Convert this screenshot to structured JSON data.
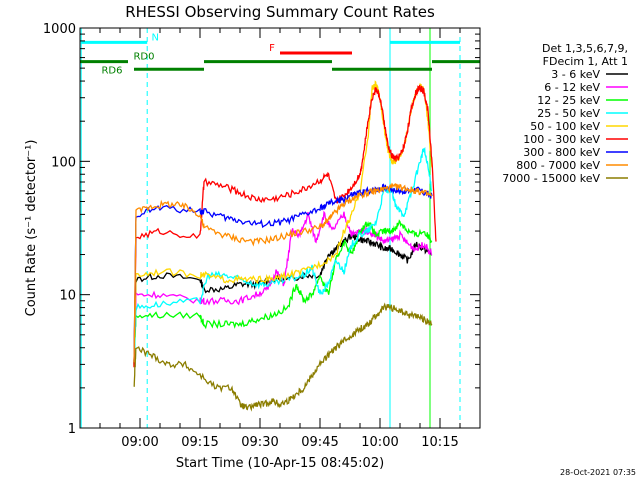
{
  "chart_data": {
    "type": "line",
    "title": "RHESSI Observing Summary Count Rates",
    "xlabel": "Start Time (10-Apr-15 08:45:02)",
    "ylabel": "Count Rate (s⁻¹ detector⁻¹)",
    "yscale": "log",
    "xlim": [
      0,
      100
    ],
    "ylim": [
      1,
      1000
    ],
    "grid": false,
    "x_ticks": [
      {
        "label": "09:00",
        "value": 15
      },
      {
        "label": "09:15",
        "value": 30
      },
      {
        "label": "09:30",
        "value": 45
      },
      {
        "label": "09:45",
        "value": 60
      },
      {
        "label": "10:00",
        "value": 75
      },
      {
        "label": "10:15",
        "value": 90
      }
    ],
    "y_ticks": [
      {
        "label": "1",
        "value": 1
      },
      {
        "label": "10",
        "value": 10
      },
      {
        "label": "100",
        "value": 100
      },
      {
        "label": "1000",
        "value": 1000
      }
    ],
    "legend": {
      "placement": "right",
      "header": [
        "Det 1,3,5,6,7,9,",
        "FDecim 1, Att 1"
      ]
    },
    "series": [
      {
        "name": "3 - 6 keV",
        "color": "#000000",
        "x": [
          13.5,
          14,
          20,
          30,
          31,
          36,
          40,
          44,
          48,
          52,
          56,
          60,
          62,
          64,
          66,
          68,
          70,
          72,
          74,
          76,
          78,
          80,
          82,
          84,
          86,
          88
        ],
        "y": [
          3,
          13,
          14,
          13,
          11,
          11,
          12,
          12,
          13,
          13,
          14,
          14,
          20,
          22,
          25,
          28,
          26,
          25,
          24,
          22,
          22,
          20,
          18,
          24,
          22,
          20
        ]
      },
      {
        "name": "6 - 12 keV",
        "color": "#ff00ff",
        "x": [
          13.5,
          14,
          20,
          30,
          31,
          36,
          40,
          44,
          47,
          49,
          51,
          53,
          55,
          57,
          59,
          61,
          63,
          66,
          68,
          70,
          72,
          74,
          76,
          78,
          80,
          82,
          84,
          86,
          88
        ],
        "y": [
          3,
          10,
          10,
          9,
          9,
          9,
          9,
          10,
          11,
          15,
          12,
          30,
          28,
          40,
          25,
          40,
          30,
          40,
          28,
          30,
          30,
          28,
          25,
          26,
          28,
          24,
          22,
          24,
          20
        ]
      },
      {
        "name": "12 - 25 keV",
        "color": "#00ff00",
        "x": [
          13.5,
          14,
          20,
          30,
          31,
          36,
          40,
          44,
          48,
          52,
          54,
          56,
          58,
          60,
          62,
          64,
          66,
          68,
          70,
          72,
          74,
          76,
          78,
          80,
          82,
          84,
          86,
          88
        ],
        "y": [
          3,
          7,
          7,
          7,
          6,
          6,
          6,
          6.5,
          7,
          8,
          12,
          9,
          10,
          14,
          10,
          18,
          25,
          20,
          30,
          35,
          28,
          30,
          30,
          35,
          30,
          28,
          30,
          25
        ]
      },
      {
        "name": "25 - 50 keV",
        "color": "#00ffff",
        "x": [
          13.5,
          14,
          20,
          30,
          32,
          36,
          40,
          44,
          48,
          52,
          56,
          58,
          60,
          62,
          64,
          66,
          68,
          70,
          72,
          74,
          76,
          78,
          79,
          81,
          83,
          85,
          86,
          87,
          88
        ],
        "y": [
          3,
          8,
          8.5,
          9,
          14,
          14,
          13,
          12,
          12,
          13,
          14,
          16,
          10,
          12,
          18,
          15,
          24,
          28,
          30,
          35,
          60,
          60,
          45,
          40,
          60,
          100,
          125,
          90,
          60
        ]
      },
      {
        "name": "50 - 100 keV",
        "color": "#ffd700",
        "x": [
          13.5,
          14,
          20,
          30,
          31,
          36,
          40,
          44,
          48,
          52,
          56,
          60,
          64,
          66,
          68,
          70,
          72,
          73,
          74,
          75,
          76,
          77,
          78,
          79,
          80,
          81,
          82,
          83,
          84,
          85,
          86,
          87,
          88
        ],
        "y": [
          3,
          14,
          15,
          14,
          14,
          13,
          13,
          13,
          13,
          14,
          15,
          17,
          20,
          30,
          40,
          60,
          150,
          350,
          380,
          300,
          180,
          120,
          100,
          100,
          110,
          130,
          180,
          260,
          330,
          370,
          340,
          200,
          90
        ]
      },
      {
        "name": "100 - 300 keV",
        "color": "#ff0000",
        "x": [
          13.5,
          14,
          20,
          30,
          31,
          36,
          40,
          44,
          48,
          52,
          56,
          60,
          62,
          64,
          66,
          68,
          70,
          71,
          72,
          73,
          74,
          75,
          76,
          77,
          78,
          79,
          80,
          81,
          82,
          83,
          84,
          85,
          86,
          87,
          88,
          89
        ],
        "y": [
          3,
          27,
          30,
          27,
          70,
          65,
          58,
          52,
          52,
          56,
          62,
          72,
          80,
          50,
          55,
          65,
          80,
          120,
          200,
          300,
          350,
          300,
          200,
          130,
          110,
          105,
          110,
          130,
          180,
          260,
          330,
          360,
          330,
          240,
          100,
          25
        ]
      },
      {
        "name": "300 - 800 keV",
        "color": "#0000ff",
        "x": [
          13.5,
          14,
          20,
          30,
          31,
          36,
          40,
          44,
          48,
          52,
          56,
          60,
          62,
          64,
          66,
          68,
          70,
          72,
          74,
          76,
          78,
          80,
          82,
          84,
          86,
          88
        ],
        "y": [
          3,
          40,
          45,
          42,
          42,
          38,
          36,
          34,
          34,
          36,
          40,
          44,
          48,
          50,
          52,
          56,
          58,
          60,
          62,
          64,
          62,
          60,
          60,
          62,
          58,
          55
        ]
      },
      {
        "name": "800 - 7000 keV",
        "color": "#ff8c00",
        "x": [
          13.5,
          14,
          18,
          22,
          26,
          30,
          31,
          36,
          40,
          44,
          48,
          52,
          56,
          60,
          62,
          64,
          66,
          68,
          70,
          72,
          74,
          76,
          78,
          80,
          82,
          84,
          86,
          88
        ],
        "y": [
          3,
          42,
          46,
          48,
          46,
          40,
          32,
          28,
          26,
          25,
          26,
          28,
          30,
          32,
          36,
          42,
          48,
          52,
          56,
          58,
          60,
          62,
          64,
          64,
          62,
          60,
          58,
          55
        ]
      },
      {
        "name": "7000 - 15000 keV",
        "color": "#8b7d00",
        "x": [
          13.5,
          14,
          18,
          22,
          26,
          30,
          34,
          38,
          40,
          42,
          44,
          46,
          48,
          50,
          52,
          54,
          56,
          58,
          60,
          62,
          64,
          66,
          68,
          70,
          72,
          74,
          76,
          78,
          80,
          82,
          84,
          86,
          88
        ],
        "y": [
          2,
          4,
          3.5,
          3,
          3,
          2.5,
          2,
          2,
          1.5,
          1.4,
          1.5,
          1.5,
          1.6,
          1.5,
          1.6,
          1.8,
          2,
          2.5,
          3,
          3.5,
          4,
          4.5,
          5,
          5.5,
          6,
          7,
          8,
          8,
          7.5,
          7,
          7,
          6.5,
          6
        ]
      }
    ],
    "vertical_markers": [
      {
        "x": 0.3,
        "color": "#00ffff",
        "style": "solid"
      },
      {
        "x": 16.8,
        "color": "#00ffff",
        "style": "dashed"
      },
      {
        "x": 77.5,
        "color": "#00ffff",
        "style": "solid"
      },
      {
        "x": 87.5,
        "color": "#00ff00",
        "style": "solid"
      },
      {
        "x": 95,
        "color": "#00ffff",
        "style": "dashed"
      }
    ],
    "annotations": [
      {
        "label": "N",
        "color": "#00ffff",
        "y": 780,
        "segments": [
          [
            0.3,
            16.8
          ],
          [
            77.5,
            95
          ]
        ]
      },
      {
        "label": "F",
        "color": "#ff0000",
        "y": 650,
        "segments": [
          [
            50,
            68
          ]
        ]
      },
      {
        "label": "RD0",
        "color": "#008000",
        "y": 560,
        "segments": [
          [
            -3,
            12
          ],
          [
            31,
            63
          ],
          [
            88,
            100
          ]
        ]
      },
      {
        "label": "RD6",
        "color": "#008000",
        "y": 490,
        "segments": [
          [
            13.5,
            31
          ],
          [
            63,
            88
          ]
        ]
      }
    ]
  },
  "footer": {
    "timestamp": "28-Oct-2021 07:35"
  }
}
